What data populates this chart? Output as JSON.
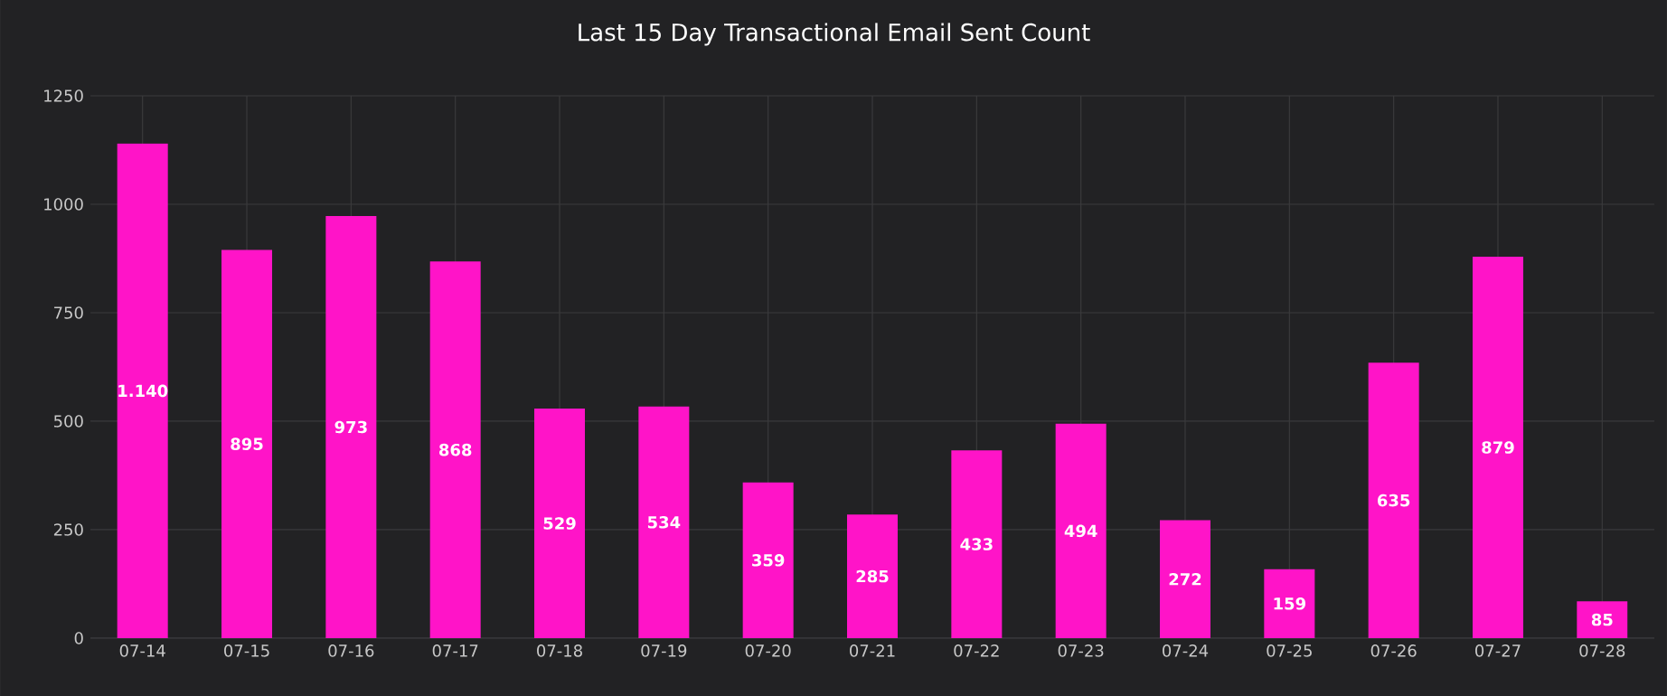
{
  "chart_data": {
    "type": "bar",
    "title": "Last 15 Day Transactional Email Sent Count",
    "categories": [
      "07-14",
      "07-15",
      "07-16",
      "07-17",
      "07-18",
      "07-19",
      "07-20",
      "07-21",
      "07-22",
      "07-23",
      "07-24",
      "07-25",
      "07-26",
      "07-27",
      "07-28"
    ],
    "values": [
      1140,
      895,
      973,
      868,
      529,
      534,
      359,
      285,
      433,
      494,
      272,
      159,
      635,
      879,
      85
    ],
    "value_labels": [
      "1.140",
      "895",
      "973",
      "868",
      "529",
      "534",
      "359",
      "285",
      "433",
      "494",
      "272",
      "159",
      "635",
      "879",
      "85"
    ],
    "color": "#ff14c8",
    "ylim": [
      0,
      1250
    ],
    "yticks": [
      0,
      250,
      500,
      750,
      1000,
      1250
    ],
    "grid": true
  }
}
